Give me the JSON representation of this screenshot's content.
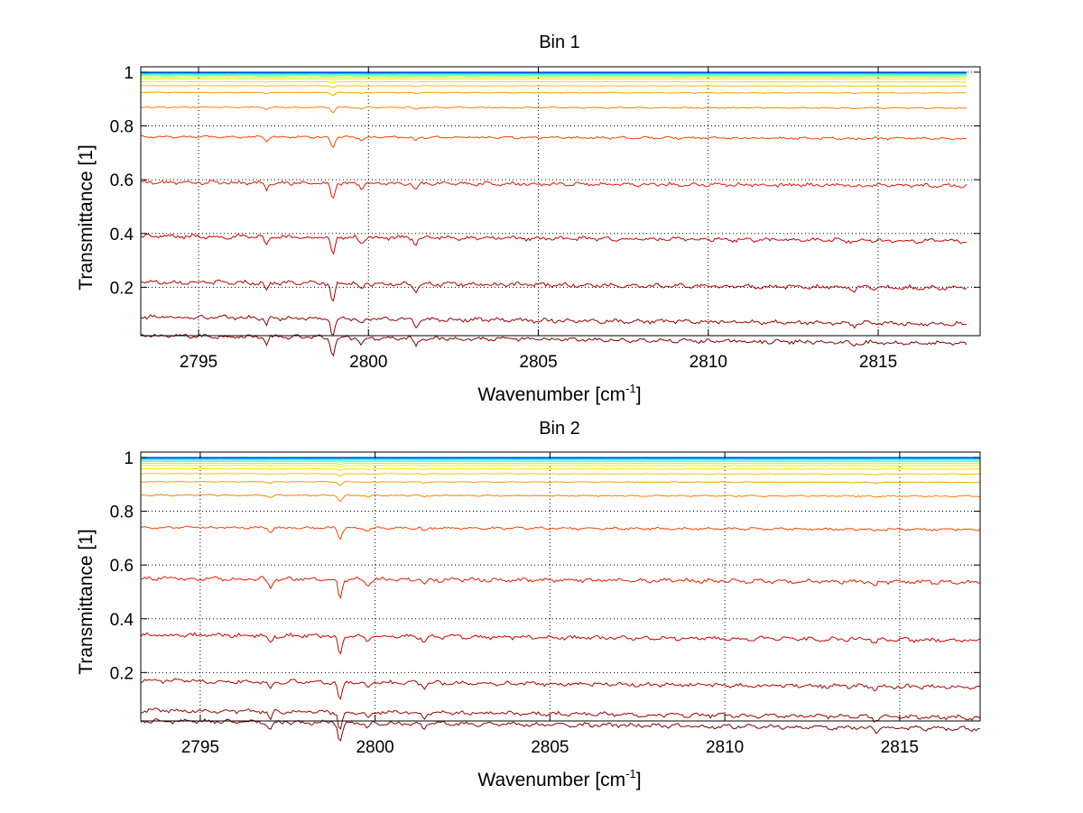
{
  "chart_data": [
    {
      "type": "line",
      "title": "Bin 1",
      "xlabel_base": "Wavenumber [cm",
      "xlabel_sup": "-1",
      "xlabel_close": "]",
      "ylabel": "Transmittance [1]",
      "xlim": [
        2793.3,
        2818.0
      ],
      "ylim": [
        0.02,
        1.02
      ],
      "x_data_range": [
        2793.3,
        2817.6
      ],
      "xticks": [
        2795,
        2800,
        2805,
        2810,
        2815
      ],
      "yticks": [
        0.2,
        0.4,
        0.6,
        0.8,
        1
      ],
      "ytick_labels": [
        "0.2",
        "0.4",
        "0.6",
        "0.8",
        "1"
      ],
      "grid": true,
      "colormap": "jet",
      "series_baselines": [
        0.02,
        0.09,
        0.22,
        0.39,
        0.59,
        0.76,
        0.87,
        0.925,
        0.95,
        0.965,
        0.975,
        0.982,
        0.988,
        0.992,
        0.995,
        0.997,
        0.999,
        1.0
      ],
      "series_colors": [
        "#800000",
        "#990000",
        "#b30000",
        "#cc0000",
        "#e61a00",
        "#ff4000",
        "#ff8000",
        "#ffa000",
        "#ffc000",
        "#ffe000",
        "#e8f000",
        "#b0ff20",
        "#70ff80",
        "#30ffc0",
        "#00e0ff",
        "#00a0ff",
        "#0060ff",
        "#0020c0"
      ],
      "dip_lines": [
        {
          "x": 2797.0,
          "depth": 0.025
        },
        {
          "x": 2798.95,
          "depth": 0.07
        },
        {
          "x": 2799.8,
          "depth": 0.025
        },
        {
          "x": 2801.4,
          "depth": 0.025
        },
        {
          "x": 2814.3,
          "depth": 0.01
        }
      ]
    },
    {
      "type": "line",
      "title": "Bin 2",
      "xlabel_base": "Wavenumber [cm",
      "xlabel_sup": "-1",
      "xlabel_close": "]",
      "ylabel": "Transmittance [1]",
      "xlim": [
        2793.3,
        2817.3
      ],
      "ylim": [
        0.02,
        1.02
      ],
      "x_data_range": [
        2793.3,
        2817.3
      ],
      "xticks": [
        2795,
        2800,
        2805,
        2810,
        2815
      ],
      "yticks": [
        0.2,
        0.4,
        0.6,
        0.8,
        1
      ],
      "ytick_labels": [
        "0.2",
        "0.4",
        "0.6",
        "0.8",
        "1"
      ],
      "grid": true,
      "colormap": "jet",
      "series_baselines": [
        0.02,
        0.06,
        0.17,
        0.34,
        0.55,
        0.74,
        0.86,
        0.91,
        0.94,
        0.958,
        0.97,
        0.978,
        0.985,
        0.99,
        0.994,
        0.997,
        0.999,
        1.0
      ],
      "series_colors": [
        "#800000",
        "#990000",
        "#b30000",
        "#cc0000",
        "#e61a00",
        "#ff4000",
        "#ff8000",
        "#ffa000",
        "#ffc000",
        "#ffe000",
        "#e8f000",
        "#b0ff20",
        "#70ff80",
        "#30ffc0",
        "#00e0ff",
        "#00a0ff",
        "#0060ff",
        "#0020c0"
      ],
      "dip_lines": [
        {
          "x": 2797.0,
          "depth": 0.03
        },
        {
          "x": 2799.0,
          "depth": 0.07
        },
        {
          "x": 2799.8,
          "depth": 0.02
        },
        {
          "x": 2801.4,
          "depth": 0.02
        },
        {
          "x": 2814.3,
          "depth": 0.015
        }
      ]
    }
  ]
}
